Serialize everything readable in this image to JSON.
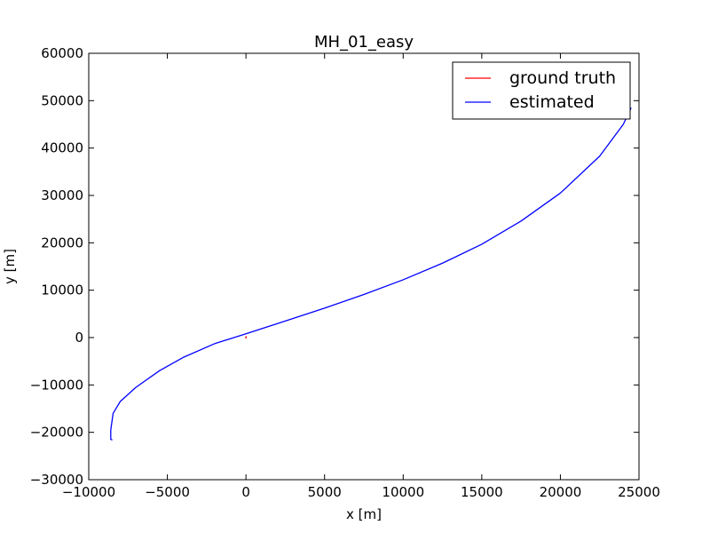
{
  "chart_data": {
    "type": "line",
    "title": "MH_01_easy",
    "xlabel": "x [m]",
    "ylabel": "y [m]",
    "xlim": [
      -10000,
      25000
    ],
    "ylim": [
      -30000,
      60000
    ],
    "xticks": [
      "−10000",
      "−5000",
      "0",
      "5000",
      "10000",
      "15000",
      "20000",
      "25000"
    ],
    "xtick_values": [
      -10000,
      -5000,
      0,
      5000,
      10000,
      15000,
      20000,
      25000
    ],
    "yticks": [
      "−30000",
      "−20000",
      "−10000",
      "0",
      "10000",
      "20000",
      "30000",
      "40000",
      "50000",
      "60000"
    ],
    "ytick_values": [
      -30000,
      -20000,
      -10000,
      0,
      10000,
      20000,
      30000,
      40000,
      50000,
      60000
    ],
    "grid": false,
    "legend_position": "top-right",
    "series": [
      {
        "name": "ground truth",
        "color": "#ff0000",
        "x": [
          -10,
          0,
          10,
          0,
          -10
        ],
        "y": [
          -200,
          0,
          200,
          100,
          -100
        ]
      },
      {
        "name": "estimated",
        "color": "#0000ff",
        "x": [
          -8500,
          -8600,
          -8600,
          -8450,
          -8000,
          -7000,
          -5500,
          -4000,
          -2000,
          0,
          2500,
          5000,
          7500,
          10000,
          12500,
          15000,
          17500,
          20000,
          22500,
          24000,
          24500
        ],
        "y": [
          -21600,
          -21500,
          -19500,
          -16000,
          -13500,
          -10500,
          -7000,
          -4200,
          -1300,
          800,
          3500,
          6200,
          9100,
          12200,
          15700,
          19700,
          24600,
          30500,
          38300,
          45000,
          48500
        ]
      }
    ]
  }
}
